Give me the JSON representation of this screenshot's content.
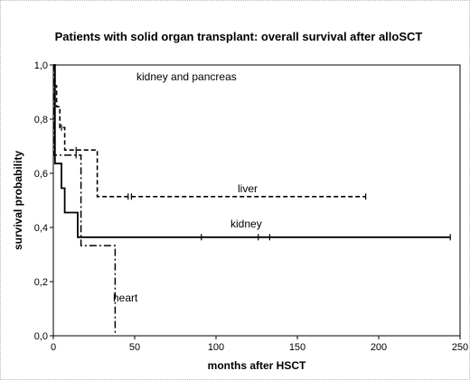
{
  "chart_data": {
    "type": "line",
    "title": "Patients with solid organ transplant: overall survival after alloSCT",
    "xlabel": "months after HSCT",
    "ylabel": "survival probability",
    "xlim": [
      0,
      250
    ],
    "ylim": [
      0,
      1
    ],
    "x_ticks": [
      0,
      50,
      100,
      150,
      200,
      250
    ],
    "x_tick_labels": [
      "0",
      "50",
      "100",
      "150",
      "200",
      "250"
    ],
    "y_ticks": [
      0,
      0.2,
      0.4,
      0.6,
      0.8,
      1.0
    ],
    "y_tick_labels": [
      "0,0",
      "0,2",
      "0,4",
      "0,6",
      "0,8",
      "1,0"
    ],
    "grid": false,
    "legend": "none",
    "series": [
      {
        "name": "kidney and pancreas",
        "style": "solid-thin",
        "x": [
          0,
          157
        ],
        "y": [
          1.0,
          1.0
        ],
        "censored": []
      },
      {
        "name": "liver",
        "style": "dashed",
        "x": [
          0,
          1,
          1,
          2,
          2,
          4,
          4,
          7,
          7,
          15,
          15,
          27,
          27,
          192
        ],
        "y": [
          1.0,
          1.0,
          0.923,
          0.923,
          0.846,
          0.846,
          0.769,
          0.769,
          0.686,
          0.686,
          0.686,
          0.686,
          0.514,
          0.514
        ],
        "censored": [
          {
            "x": 5,
            "y": 0.769
          },
          {
            "x": 14,
            "y": 0.686
          },
          {
            "x": 46,
            "y": 0.514
          },
          {
            "x": 48,
            "y": 0.514
          },
          {
            "x": 192,
            "y": 0.514
          }
        ]
      },
      {
        "name": "kidney",
        "style": "solid",
        "x": [
          0,
          1,
          1,
          5,
          5,
          7,
          7,
          15,
          15,
          244
        ],
        "y": [
          1.0,
          1.0,
          0.636,
          0.636,
          0.545,
          0.545,
          0.455,
          0.455,
          0.364,
          0.364
        ],
        "censored": [
          {
            "x": 91,
            "y": 0.364
          },
          {
            "x": 126,
            "y": 0.364
          },
          {
            "x": 133,
            "y": 0.364
          },
          {
            "x": 244,
            "y": 0.364
          }
        ]
      },
      {
        "name": "heart",
        "style": "dash-dot",
        "x": [
          0,
          0.5,
          0.5,
          13,
          13,
          17,
          17,
          38,
          38
        ],
        "y": [
          1.0,
          1.0,
          0.667,
          0.667,
          0.667,
          0.667,
          0.333,
          0.333,
          0.0
        ],
        "censored": [
          {
            "x": 14,
            "y": 0.667
          }
        ]
      }
    ]
  }
}
